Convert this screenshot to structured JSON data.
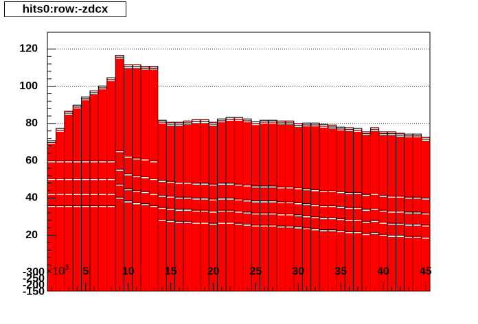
{
  "chart_data": {
    "type": "bar",
    "stacked": true,
    "title": "hits0:row:-zdcx",
    "x": [
      1,
      2,
      3,
      4,
      5,
      6,
      7,
      8,
      9,
      10,
      11,
      12,
      13,
      14,
      15,
      16,
      17,
      18,
      19,
      20,
      21,
      22,
      23,
      24,
      25,
      26,
      27,
      28,
      29,
      30,
      31,
      32,
      33,
      34,
      35,
      36,
      37,
      38,
      39,
      40,
      41,
      42,
      43,
      44,
      45
    ],
    "series": [
      {
        "color": "#ff0000",
        "values": [
          36,
          36,
          36,
          36,
          36,
          36,
          36,
          36,
          40.5,
          38.5,
          37.5,
          37,
          36,
          28.5,
          28,
          27.5,
          27.5,
          27,
          27,
          26.5,
          27,
          27,
          26.5,
          26,
          25.5,
          25.5,
          25.5,
          25,
          25,
          24.5,
          24,
          23.5,
          23,
          23,
          22.5,
          22,
          22,
          21,
          21.5,
          20.5,
          20,
          20,
          19.5,
          19.5,
          19
        ]
      },
      {
        "color": "#ff0000",
        "values": [
          6.5,
          6.5,
          6.5,
          6.5,
          6.5,
          6.5,
          6.5,
          6.5,
          7,
          6.5,
          6.5,
          6.5,
          6.5,
          6.5,
          6.5,
          6.5,
          6.5,
          6.5,
          6.5,
          6.5,
          6.5,
          6.5,
          6.5,
          6.5,
          6.5,
          6.5,
          6.5,
          6.5,
          6.5,
          6.5,
          6.5,
          6.5,
          6.5,
          6.5,
          6.5,
          6.5,
          6.5,
          6.5,
          6.5,
          6.5,
          6.5,
          6.5,
          6.5,
          6.5,
          6.5
        ]
      },
      {
        "color": "#ff0000",
        "values": [
          8,
          8,
          8,
          8,
          8,
          8,
          8,
          8,
          8,
          8,
          8,
          8,
          8,
          6.5,
          6.5,
          6.5,
          6.5,
          6.5,
          6.5,
          6.5,
          6.5,
          6.5,
          6.5,
          6.5,
          6.5,
          6.5,
          6.5,
          6.5,
          6.5,
          6.5,
          6.5,
          6.5,
          6.5,
          6.5,
          6.5,
          6.5,
          6.5,
          6.5,
          6.5,
          6.5,
          6.5,
          6.5,
          6.5,
          6.5,
          6.5
        ]
      },
      {
        "color": "#ff0000",
        "values": [
          9.5,
          9.5,
          9.5,
          9.5,
          9.5,
          9.5,
          9.5,
          9.5,
          10,
          9.5,
          9.5,
          9.5,
          9.5,
          8,
          8,
          8,
          8,
          8,
          8,
          8,
          8,
          8,
          8,
          8,
          8,
          8,
          8,
          8,
          8,
          8,
          8,
          8,
          8,
          8,
          8,
          8,
          8,
          8,
          8,
          8,
          8,
          8,
          8,
          8,
          8
        ]
      },
      {
        "color": "#ff0000",
        "values": [
          9.8,
          16.4,
          25.6,
          28.9,
          33.3,
          36.6,
          39.2,
          43.6,
          50.2,
          48.1,
          49.1,
          48.8,
          49.8,
          31.3,
          30.7,
          31.2,
          31.9,
          33.1,
          33.1,
          32.2,
          33.5,
          34.3,
          34.8,
          34.5,
          33.5,
          34.3,
          34.3,
          34.4,
          34.4,
          33.5,
          34.3,
          34.8,
          34.6,
          34.2,
          33.6,
          33.8,
          33.4,
          32.6,
          34.3,
          33.1,
          33.6,
          32.8,
          32.9,
          32.9,
          31.6
        ]
      },
      {
        "color": "#ff0000",
        "values": [
          1,
          1,
          1,
          1,
          1,
          1,
          1,
          1,
          1,
          1,
          1,
          1,
          1,
          1,
          1,
          1,
          1,
          1,
          1,
          1,
          1,
          1,
          1,
          1,
          1,
          1,
          1,
          1,
          1,
          1,
          1,
          1,
          1,
          1,
          1,
          1,
          1,
          1,
          1,
          1,
          1,
          1,
          1,
          1,
          1
        ]
      }
    ],
    "xlim": [
      0.5,
      45.5
    ],
    "xticks": [
      5,
      10,
      15,
      20,
      25,
      30,
      35,
      40,
      45
    ],
    "ylim": [
      -10,
      129
    ],
    "yticks": [
      20,
      40,
      60,
      80,
      100,
      120
    ],
    "grid_lines": [
      80,
      100,
      120
    ],
    "axis_exponent": "×10",
    "axis_exponent_power": "3",
    "overlapping_labels": [
      "-300",
      "-250",
      "-200",
      "-150"
    ]
  }
}
